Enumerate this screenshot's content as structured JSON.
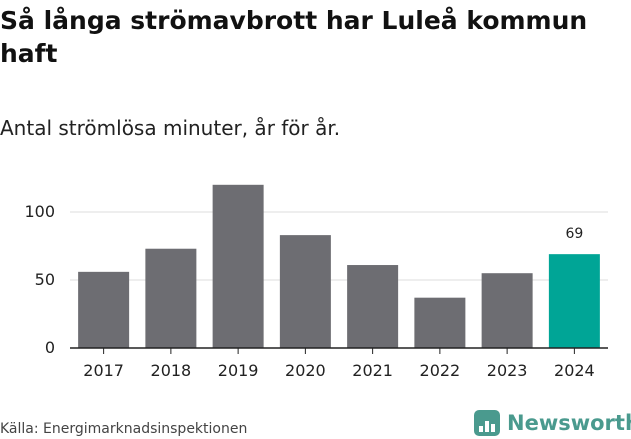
{
  "title": "Så långa strömavbrott har Luleå kommun haft",
  "subtitle": "Antal strömlösa minuter, år för år.",
  "source": "Källa: Energimarknadsinspektionen",
  "brand": {
    "name": "Newsworthy",
    "color": "#4a9a8e"
  },
  "colors": {
    "bar": "#6d6d72",
    "highlight": "#00a596",
    "grid": "#dddddd",
    "axis": "#222222"
  },
  "chart_data": {
    "type": "bar",
    "categories": [
      "2017",
      "2018",
      "2019",
      "2020",
      "2021",
      "2022",
      "2023",
      "2024"
    ],
    "values": [
      56,
      73,
      120,
      83,
      61,
      37,
      55,
      69
    ],
    "highlight_index": 7,
    "data_labels": {
      "7": "69"
    },
    "yticks": [
      0,
      50,
      100
    ],
    "ylim": [
      0,
      130
    ],
    "xlabel": "",
    "ylabel": "",
    "grid": true
  }
}
